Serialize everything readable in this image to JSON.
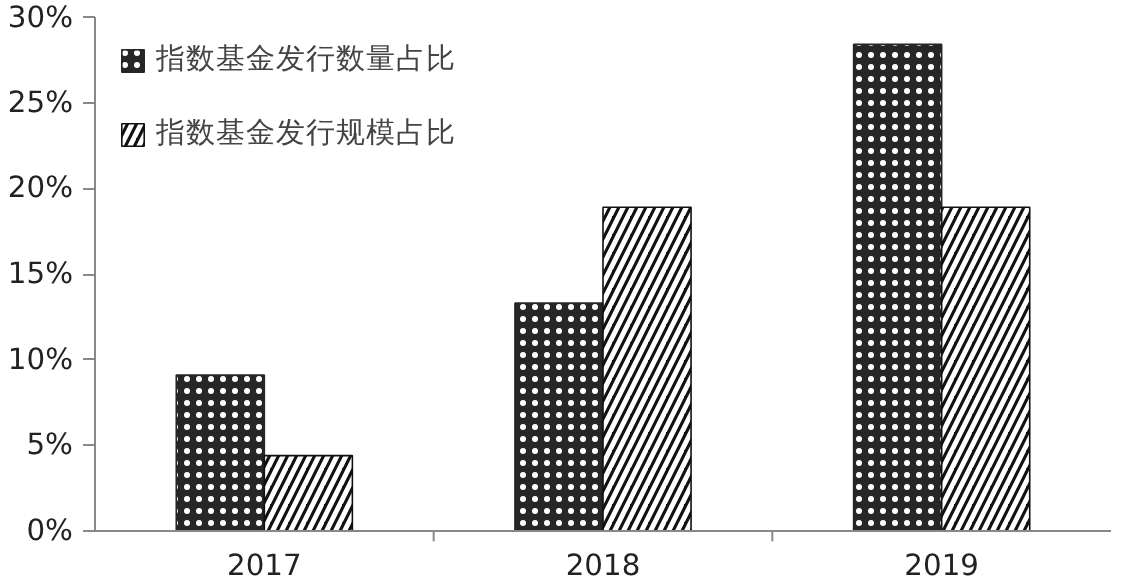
{
  "chart_data": {
    "type": "bar",
    "categories": [
      "2017",
      "2018",
      "2019"
    ],
    "series": [
      {
        "name": "指数基金发行数量占比",
        "color": "#262626",
        "values": [
          9.1,
          13.3,
          28.4
        ]
      },
      {
        "name": "指数基金发行规模占比",
        "color": "#111111",
        "values": [
          4.4,
          18.9,
          18.9
        ]
      }
    ],
    "ylim": [
      0,
      30
    ],
    "yticks": [
      {
        "value": 0,
        "label": "0%"
      },
      {
        "value": 5,
        "label": "5%"
      },
      {
        "value": 10,
        "label": "10%"
      },
      {
        "value": 15,
        "label": "15%"
      },
      {
        "value": 20,
        "label": "20%"
      },
      {
        "value": 25,
        "label": "25%"
      },
      {
        "value": 30,
        "label": "30%"
      }
    ],
    "grid": false,
    "legend": "top left"
  }
}
